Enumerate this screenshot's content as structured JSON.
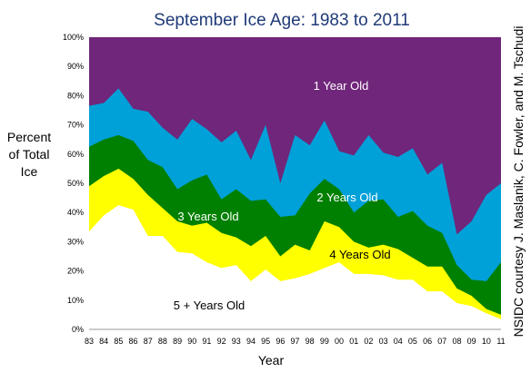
{
  "chart_data": {
    "type": "area",
    "stacked": true,
    "title": "September Ice Age: 1983 to 2011",
    "xlabel": "Year",
    "ylabel_lines": [
      "Percent",
      "of Total",
      "Ice"
    ],
    "credit": "NSIDC courtesy J. Maslanik, C. Fowler, and M. Tschudi",
    "ylim": [
      0,
      100
    ],
    "yticks": [
      "0%",
      "10%",
      "20%",
      "30%",
      "40%",
      "50%",
      "60%",
      "70%",
      "80%",
      "90%",
      "100%"
    ],
    "x": [
      "83",
      "84",
      "85",
      "86",
      "87",
      "88",
      "89",
      "90",
      "91",
      "92",
      "93",
      "94",
      "95",
      "96",
      "97",
      "98",
      "99",
      "00",
      "01",
      "02",
      "03",
      "04",
      "05",
      "06",
      "07",
      "08",
      "09",
      "10",
      "11"
    ],
    "cumulative_series": [
      {
        "name": "5 + Years Old",
        "color": "#ffffff",
        "top": [
          33.5,
          39,
          42.5,
          41,
          32,
          32,
          26.5,
          26,
          23,
          21,
          22,
          16.5,
          20.5,
          16.5,
          17.5,
          19,
          21,
          23,
          19,
          19,
          18.5,
          17,
          17,
          13,
          13,
          9,
          8,
          5.5,
          3.5
        ]
      },
      {
        "name": "4 Years Old",
        "color": "#ffff00",
        "top": [
          49,
          52.5,
          55,
          51.5,
          46,
          41.5,
          37,
          35.5,
          36.5,
          33,
          31.5,
          28.5,
          32,
          25,
          29,
          27,
          37,
          35,
          30,
          28,
          29,
          27.5,
          24.5,
          21.5,
          21.5,
          14,
          11.5,
          7,
          5
        ]
      },
      {
        "name": "3 Years Old",
        "color": "#008000",
        "top": [
          62.5,
          65,
          66.5,
          64.5,
          58,
          55.5,
          48,
          51,
          53,
          44.5,
          48,
          44,
          44.5,
          38.5,
          39,
          46.5,
          51.5,
          48,
          40,
          44,
          44.5,
          38.5,
          40.5,
          35.5,
          33,
          22,
          17,
          16.5,
          23
        ]
      },
      {
        "name": "2 Years Old",
        "color": "#00a0d8",
        "top": [
          76.5,
          77.5,
          82.5,
          75.5,
          74.5,
          69,
          65,
          72,
          68.5,
          64,
          68,
          58,
          70,
          50,
          66.5,
          63,
          71.5,
          61,
          59.5,
          66.5,
          60.5,
          59,
          62,
          53,
          57,
          32.5,
          37,
          46,
          50
        ]
      },
      {
        "name": "1 Year Old",
        "color": "#70267a",
        "top": [
          100,
          100,
          100,
          100,
          100,
          100,
          100,
          100,
          100,
          100,
          100,
          100,
          100,
          100,
          100,
          100,
          100,
          100,
          100,
          100,
          100,
          100,
          100,
          100,
          100,
          100,
          100,
          100,
          100
        ]
      }
    ]
  }
}
